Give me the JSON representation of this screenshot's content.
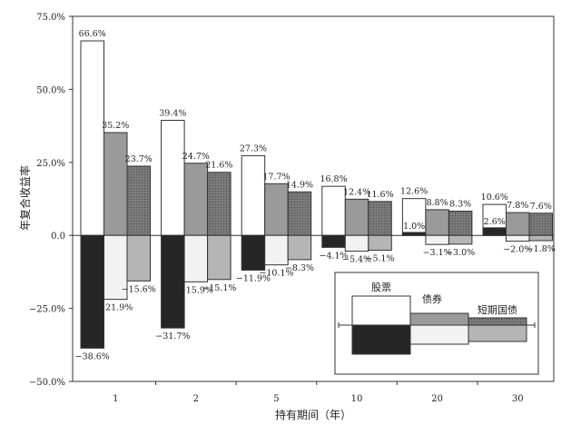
{
  "chart_data": {
    "type": "bar",
    "xlabel": "持有期间（年）",
    "ylabel": "年复合收益率",
    "categories": [
      "1",
      "2",
      "5",
      "10",
      "20",
      "30"
    ],
    "ylim": [
      -50,
      75
    ],
    "yticks": [
      -50,
      -25,
      0,
      25,
      50,
      75
    ],
    "ytick_labels": [
      "−50.0%",
      "−25.0%",
      "0.0",
      "25.0%",
      "50.0%",
      "75.0%"
    ],
    "grid": false,
    "legend_position": "bottom-right",
    "series": [
      {
        "name": "股票",
        "max": [
          66.6,
          39.4,
          27.3,
          16.8,
          12.6,
          10.6
        ],
        "min": [
          -38.6,
          -31.7,
          -11.9,
          -4.1,
          1.0,
          2.6
        ],
        "max_labels": [
          "66.6%",
          "39.4%",
          "27.3%",
          "16.8%",
          "12.6%",
          "10.6%"
        ],
        "min_labels": [
          "−38.6%",
          "−31.7%",
          "−11.9%",
          "−4.1%",
          "1.0%",
          "2.6%"
        ],
        "fill_max": "#ffffff",
        "fill_min": "#262626"
      },
      {
        "name": "债券",
        "max": [
          35.2,
          24.7,
          17.7,
          12.4,
          8.8,
          7.8
        ],
        "min": [
          -21.9,
          -15.9,
          -10.1,
          -5.4,
          -3.1,
          -2.0
        ],
        "max_labels": [
          "35.2%",
          "24.7%",
          "17.7%",
          "12.4%",
          "8.8%",
          "7.8%"
        ],
        "min_labels": [
          "−21.9%",
          "−15.9%",
          "−10.1%",
          "−5.4%",
          "−3.1%",
          "−2.0%"
        ],
        "fill_max": "#9a9a9a",
        "fill_min": "#f2f2f2"
      },
      {
        "name": "短期国债",
        "max": [
          23.7,
          21.6,
          14.9,
          11.6,
          8.3,
          7.6
        ],
        "min": [
          -15.6,
          -15.1,
          -8.3,
          -5.1,
          -3.0,
          -1.8
        ],
        "max_labels": [
          "23.7%",
          "21.6%",
          "14.9%",
          "11.6%",
          "8.3%",
          "7.6%"
        ],
        "min_labels": [
          "−15.6%",
          "−15.1%",
          "−8.3%",
          "−5.1%",
          "−3.0%",
          "−1.8%"
        ],
        "fill_max": "#6f6f6f",
        "fill_min": "#b5b5b5"
      }
    ]
  }
}
